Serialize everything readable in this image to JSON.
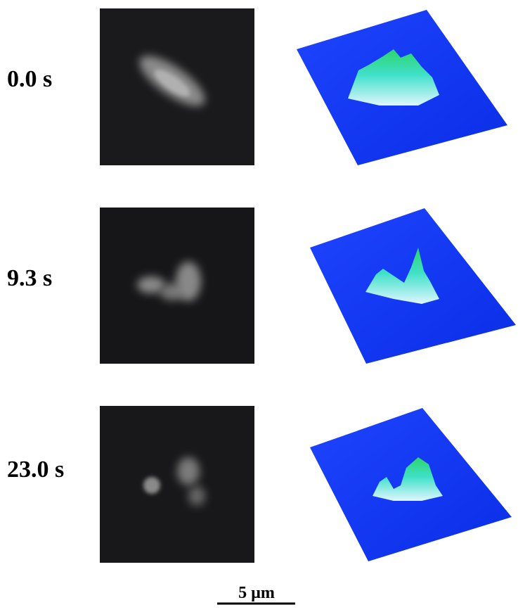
{
  "rows": [
    {
      "label": "0.0 s"
    },
    {
      "label": "9.3 s"
    },
    {
      "label": "23.0 s"
    }
  ],
  "scale_bar": {
    "label": "5 µm"
  }
}
